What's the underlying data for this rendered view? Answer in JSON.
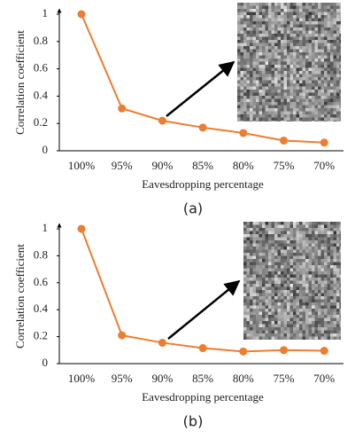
{
  "chart_data": [
    {
      "type": "line",
      "y_label": "Correlation coefficient",
      "x_label": "Eavesdropping percentage",
      "caption": "(a)",
      "categories": [
        "100%",
        "95%",
        "90%",
        "85%",
        "80%",
        "75%",
        "70%"
      ],
      "values": [
        1,
        0.31,
        0.22,
        0.17,
        0.13,
        0.075,
        0.06
      ],
      "color": "#ED7D31",
      "ylim": [
        0,
        1
      ],
      "yticks": [
        0,
        0.2,
        0.4,
        0.6,
        0.8,
        1
      ]
    },
    {
      "type": "line",
      "y_label": "Correlation coefficient",
      "x_label": "Eavesdropping percentage",
      "caption": "(b)",
      "categories": [
        "100%",
        "95%",
        "90%",
        "85%",
        "80%",
        "75%",
        "70%"
      ],
      "values": [
        1,
        0.21,
        0.155,
        0.115,
        0.09,
        0.1,
        0.095
      ],
      "color": "#ED7D31",
      "ylim": [
        0,
        1
      ],
      "yticks": [
        0,
        0.2,
        0.4,
        0.6,
        0.8,
        1
      ]
    }
  ]
}
